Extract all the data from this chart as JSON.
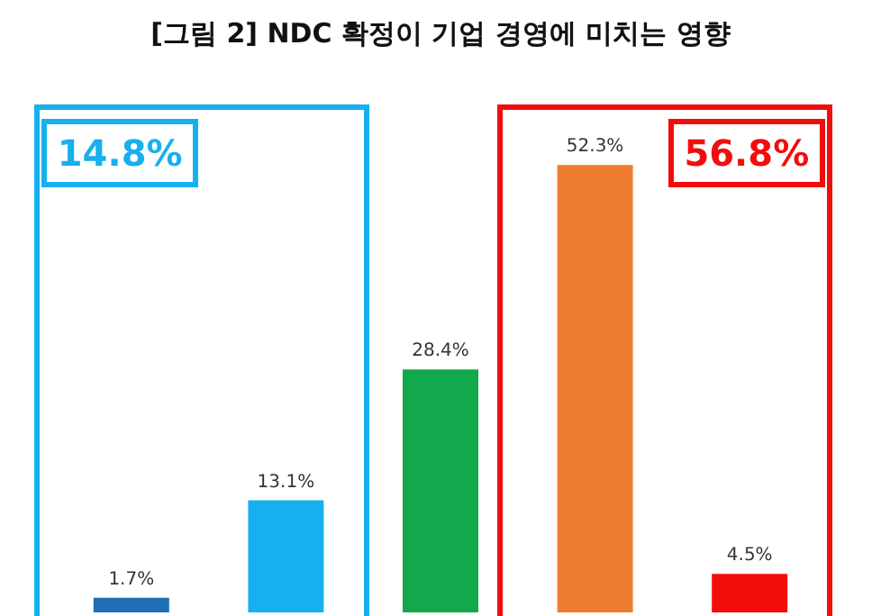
{
  "chart_data": {
    "type": "bar",
    "title": "[그림 2] NDC 확정이 기업 경영에 미치는 영향",
    "categories": [
      null,
      null,
      null,
      null,
      null
    ],
    "values": [
      1.7,
      13.1,
      28.4,
      52.3,
      4.5
    ],
    "colors": [
      "#1f6fb4",
      "#16b0ee",
      "#12a84c",
      "#ee7d31",
      "#f20d0d"
    ],
    "value_labels": [
      "1.7%",
      "13.1%",
      "28.4%",
      "52.3%",
      "4.5%"
    ],
    "annotations": [
      "14.8%",
      "56.8%"
    ]
  }
}
